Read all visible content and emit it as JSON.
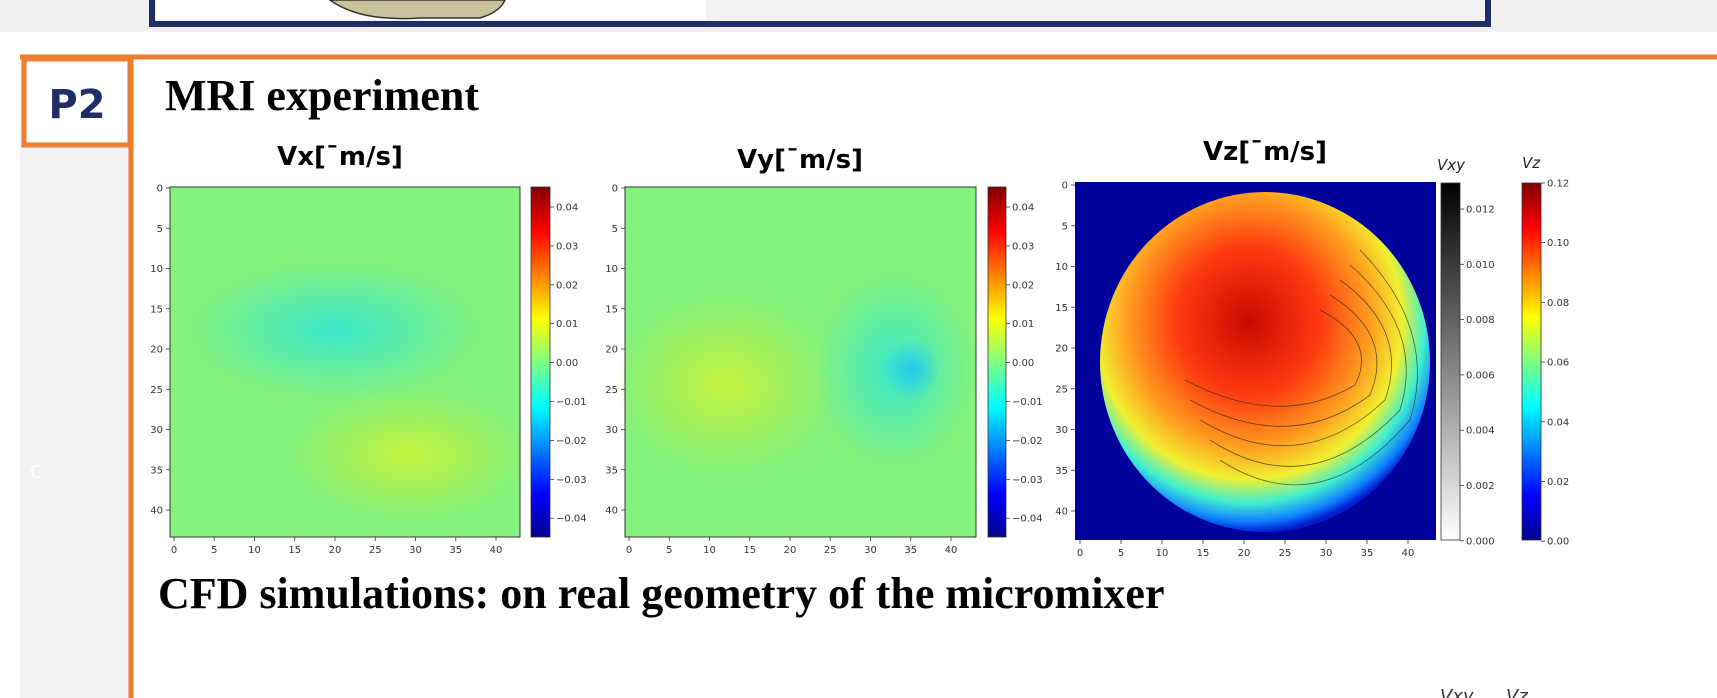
{
  "section_label": "P2",
  "side_letter": "C",
  "mri_heading": "MRI experiment",
  "panels": [
    {
      "title": "Vx[¯m/s]",
      "xticks": [
        "0",
        "5",
        "10",
        "15",
        "20",
        "25",
        "30",
        "35",
        "40"
      ],
      "yticks": [
        "0",
        "5",
        "10",
        "15",
        "20",
        "25",
        "30",
        "35",
        "40"
      ],
      "colorbar_ticks": [
        "0.04",
        "0.03",
        "0.02",
        "0.01",
        "0.00",
        "−0.01",
        "−0.02",
        "−0.03",
        "−0.04"
      ]
    },
    {
      "title": "Vy[¯m/s]",
      "xticks": [
        "0",
        "5",
        "10",
        "15",
        "20",
        "25",
        "30",
        "35",
        "40"
      ],
      "yticks": [
        "0",
        "5",
        "10",
        "15",
        "20",
        "25",
        "30",
        "35",
        "40"
      ],
      "colorbar_ticks": [
        "0.04",
        "0.03",
        "0.02",
        "0.01",
        "0.00",
        "−0.01",
        "−0.02",
        "−0.03",
        "−0.04"
      ]
    },
    {
      "title": "Vz[¯m/s]",
      "xticks": [
        "0",
        "5",
        "10",
        "15",
        "20",
        "25",
        "30",
        "35",
        "40"
      ],
      "yticks": [
        "0",
        "5",
        "10",
        "15",
        "20",
        "25",
        "30",
        "35",
        "40"
      ],
      "vxy_label": "Vxy",
      "vxy_ticks": [
        "0.012",
        "0.010",
        "0.008",
        "0.006",
        "0.004",
        "0.002",
        "0.000"
      ],
      "vz_label": "Vz",
      "vz_ticks": [
        "0.12",
        "0.10",
        "0.08",
        "0.06",
        "0.04",
        "0.02",
        "0.00"
      ]
    }
  ],
  "cfd_heading": "CFD simulations: on real geometry of the micromixer",
  "bottom_labels": [
    "Vxy",
    "Vz"
  ]
}
